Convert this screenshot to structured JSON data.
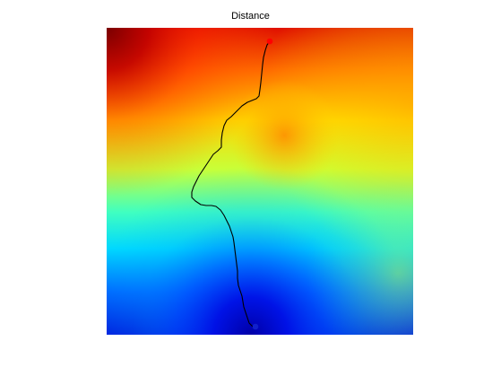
{
  "figure": {
    "title": "Distance"
  },
  "image": {
    "colormap": "jet",
    "axis": "off"
  },
  "path": {
    "color": "#000000",
    "start_point": {
      "color": "#ff0000"
    },
    "end_point": {
      "color": "#0000cc"
    }
  }
}
